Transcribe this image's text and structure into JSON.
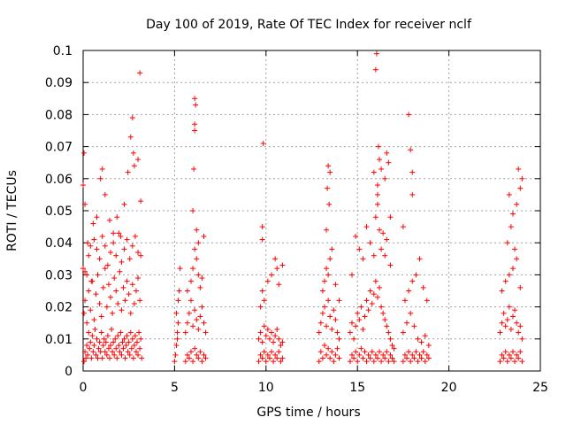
{
  "chart_data": {
    "type": "scatter",
    "title": "Day 100 of 2019, Rate Of TEC Index for receiver nclf",
    "xlabel": "GPS time / hours",
    "ylabel": "ROTI / TECUs",
    "xlim": [
      0,
      25
    ],
    "ylim": [
      0,
      0.1
    ],
    "xticks": [
      0,
      5,
      10,
      15,
      20,
      25
    ],
    "yticks": [
      0,
      0.01,
      0.02,
      0.03,
      0.04,
      0.05,
      0.06,
      0.07,
      0.08,
      0.09,
      0.1
    ],
    "xtick_labels": [
      "0",
      "5",
      "10",
      "15",
      "20",
      "25"
    ],
    "ytick_labels": [
      "0",
      "0.01",
      "0.02",
      "0.03",
      "0.04",
      "0.05",
      "0.06",
      "0.07",
      "0.08",
      "0.09",
      "0.1"
    ],
    "grid": true,
    "marker": "+",
    "marker_color": "#ff0000",
    "series": [
      {
        "name": "ROTI",
        "x": [
          0.05,
          0.1,
          0.15,
          0.2,
          0.25,
          0.3,
          0.35,
          0.4,
          0.45,
          0.5,
          0.55,
          0.6,
          0.65,
          0.7,
          0.75,
          0.8,
          0.85,
          0.9,
          0.95,
          1.0,
          1.05,
          1.1,
          1.15,
          1.2,
          1.25,
          1.3,
          1.35,
          1.4,
          1.45,
          1.5,
          1.55,
          1.6,
          1.65,
          1.7,
          1.75,
          1.8,
          1.85,
          1.9,
          1.95,
          2.0,
          2.05,
          2.1,
          2.15,
          2.2,
          2.25,
          2.3,
          2.35,
          2.4,
          2.45,
          2.5,
          2.55,
          2.6,
          2.65,
          2.7,
          2.75,
          2.8,
          2.85,
          2.9,
          2.95,
          3.0,
          3.05,
          3.1,
          3.15,
          3.2,
          0.05,
          0.1,
          0.2,
          0.3,
          0.4,
          0.5,
          0.6,
          0.7,
          0.8,
          0.9,
          1.0,
          1.1,
          1.2,
          1.3,
          1.4,
          1.5,
          1.6,
          1.7,
          1.8,
          1.9,
          2.0,
          2.1,
          2.2,
          2.3,
          2.4,
          2.5,
          2.6,
          2.7,
          2.8,
          2.9,
          3.0,
          3.1,
          0.0,
          0.1,
          0.2,
          0.3,
          0.45,
          0.6,
          0.75,
          0.9,
          1.05,
          1.2,
          1.35,
          1.5,
          1.65,
          1.8,
          1.95,
          2.1,
          2.25,
          2.4,
          2.55,
          2.7,
          2.85,
          3.0,
          3.15,
          0.0,
          0.05,
          0.1,
          0.25,
          0.4,
          0.55,
          0.75,
          0.95,
          1.05,
          1.2,
          1.45,
          1.65,
          1.85,
          2.05,
          2.25,
          2.45,
          2.6,
          2.7,
          2.75,
          2.8,
          3.0,
          3.1,
          3.15,
          5.0,
          5.05,
          5.1,
          5.15,
          5.2,
          5.25,
          5.3,
          5.1,
          5.2,
          5.15,
          5.6,
          5.7,
          5.8,
          5.9,
          6.0,
          6.1,
          6.2,
          6.3,
          6.4,
          6.5,
          6.6,
          6.7,
          5.6,
          5.7,
          5.8,
          5.9,
          6.0,
          6.1,
          6.2,
          6.3,
          6.4,
          6.5,
          6.6,
          6.7,
          5.7,
          5.9,
          6.0,
          6.1,
          6.2,
          6.3,
          6.4,
          6.5,
          6.6,
          6.0,
          6.05,
          6.1,
          6.1,
          6.15,
          6.1,
          6.2,
          6.3,
          9.6,
          9.7,
          9.8,
          9.9,
          10.0,
          10.1,
          10.2,
          10.3,
          10.4,
          10.5,
          10.6,
          10.7,
          10.8,
          10.9,
          9.6,
          9.7,
          9.8,
          9.9,
          10.0,
          10.1,
          10.2,
          10.3,
          10.4,
          10.5,
          10.6,
          10.7,
          10.8,
          10.9,
          9.7,
          9.8,
          9.9,
          10.1,
          10.3,
          10.5,
          10.6,
          10.7,
          10.9,
          9.8,
          9.8,
          9.85,
          12.9,
          13.0,
          13.1,
          13.2,
          13.3,
          13.4,
          13.5,
          13.6,
          13.7,
          13.8,
          13.9,
          14.0,
          12.9,
          13.0,
          13.1,
          13.2,
          13.3,
          13.4,
          13.5,
          13.6,
          13.7,
          13.8,
          13.9,
          14.0,
          13.1,
          13.2,
          13.3,
          13.4,
          13.5,
          13.6,
          13.8,
          14.0,
          13.3,
          13.35,
          13.4,
          13.45,
          13.5,
          14.6,
          14.7,
          14.8,
          14.9,
          15.0,
          15.1,
          15.2,
          15.3,
          15.4,
          15.5,
          15.6,
          15.7,
          15.8,
          15.9,
          16.0,
          16.1,
          16.2,
          16.3,
          16.4,
          16.5,
          16.6,
          16.7,
          16.8,
          16.9,
          17.0,
          14.6,
          14.7,
          14.8,
          14.9,
          15.0,
          15.1,
          15.2,
          15.3,
          15.4,
          15.5,
          15.6,
          15.7,
          15.8,
          15.9,
          16.0,
          16.1,
          16.2,
          16.3,
          16.4,
          16.5,
          16.6,
          16.7,
          16.8,
          16.9,
          17.0,
          14.7,
          14.9,
          15.1,
          15.3,
          15.5,
          15.7,
          15.9,
          16.0,
          16.1,
          16.2,
          16.3,
          16.4,
          16.5,
          16.6,
          16.8,
          15.9,
          16.0,
          16.05,
          16.1,
          16.1,
          16.15,
          16.2,
          16.3,
          16.5,
          16.6,
          16.7,
          16.8,
          17.5,
          17.6,
          17.7,
          17.8,
          17.9,
          18.0,
          18.1,
          18.2,
          18.3,
          18.4,
          18.5,
          18.6,
          18.7,
          18.8,
          18.9,
          17.5,
          17.7,
          17.9,
          18.1,
          18.3,
          18.5,
          18.7,
          18.9,
          17.6,
          17.8,
          18.0,
          18.2,
          18.4,
          18.6,
          18.8,
          17.8,
          17.9,
          18.0,
          18.0,
          17.5,
          22.8,
          22.9,
          23.0,
          23.1,
          23.2,
          23.3,
          23.4,
          23.5,
          23.6,
          23.7,
          23.8,
          23.9,
          24.0,
          22.8,
          22.9,
          23.0,
          23.1,
          23.2,
          23.3,
          23.4,
          23.5,
          23.6,
          23.7,
          23.8,
          23.9,
          24.0,
          22.9,
          23.1,
          23.3,
          23.5,
          23.7,
          23.9,
          23.2,
          23.4,
          23.6,
          23.7,
          23.8,
          23.9,
          24.0,
          23.3,
          23.5
        ],
        "y": [
          0.003,
          0.006,
          0.004,
          0.008,
          0.005,
          0.012,
          0.007,
          0.009,
          0.004,
          0.011,
          0.006,
          0.008,
          0.013,
          0.005,
          0.01,
          0.004,
          0.007,
          0.009,
          0.006,
          0.012,
          0.004,
          0.008,
          0.01,
          0.006,
          0.009,
          0.005,
          0.011,
          0.007,
          0.004,
          0.008,
          0.013,
          0.006,
          0.009,
          0.005,
          0.01,
          0.007,
          0.004,
          0.011,
          0.008,
          0.006,
          0.012,
          0.005,
          0.009,
          0.007,
          0.01,
          0.004,
          0.008,
          0.011,
          0.006,
          0.009,
          0.005,
          0.012,
          0.007,
          0.01,
          0.004,
          0.008,
          0.011,
          0.006,
          0.009,
          0.005,
          0.012,
          0.007,
          0.01,
          0.004,
          0.018,
          0.022,
          0.015,
          0.025,
          0.019,
          0.028,
          0.016,
          0.024,
          0.03,
          0.021,
          0.017,
          0.026,
          0.032,
          0.02,
          0.027,
          0.023,
          0.018,
          0.029,
          0.025,
          0.021,
          0.031,
          0.019,
          0.026,
          0.022,
          0.028,
          0.024,
          0.018,
          0.027,
          0.021,
          0.025,
          0.029,
          0.022,
          0.032,
          0.031,
          0.03,
          0.036,
          0.028,
          0.041,
          0.038,
          0.035,
          0.042,
          0.039,
          0.033,
          0.037,
          0.04,
          0.036,
          0.043,
          0.034,
          0.038,
          0.041,
          0.035,
          0.039,
          0.042,
          0.037,
          0.036,
          0.058,
          0.068,
          0.052,
          0.04,
          0.039,
          0.046,
          0.048,
          0.06,
          0.063,
          0.055,
          0.047,
          0.043,
          0.048,
          0.042,
          0.052,
          0.062,
          0.073,
          0.079,
          0.068,
          0.064,
          0.066,
          0.093,
          0.053,
          0.003,
          0.005,
          0.008,
          0.012,
          0.015,
          0.025,
          0.032,
          0.018,
          0.022,
          0.01,
          0.003,
          0.005,
          0.004,
          0.006,
          0.003,
          0.007,
          0.005,
          0.004,
          0.006,
          0.003,
          0.005,
          0.004,
          0.012,
          0.015,
          0.018,
          0.022,
          0.014,
          0.019,
          0.016,
          0.013,
          0.017,
          0.02,
          0.015,
          0.012,
          0.025,
          0.028,
          0.032,
          0.038,
          0.035,
          0.03,
          0.026,
          0.029,
          0.042,
          0.05,
          0.063,
          0.077,
          0.085,
          0.083,
          0.075,
          0.044,
          0.04,
          0.003,
          0.005,
          0.004,
          0.006,
          0.003,
          0.005,
          0.004,
          0.006,
          0.003,
          0.005,
          0.004,
          0.006,
          0.003,
          0.004,
          0.01,
          0.012,
          0.009,
          0.014,
          0.011,
          0.013,
          0.01,
          0.012,
          0.009,
          0.011,
          0.013,
          0.01,
          0.008,
          0.009,
          0.02,
          0.025,
          0.022,
          0.028,
          0.03,
          0.035,
          0.032,
          0.027,
          0.033,
          0.045,
          0.041,
          0.071,
          0.003,
          0.006,
          0.004,
          0.008,
          0.005,
          0.007,
          0.004,
          0.006,
          0.003,
          0.005,
          0.007,
          0.004,
          0.012,
          0.015,
          0.018,
          0.02,
          0.014,
          0.022,
          0.017,
          0.013,
          0.019,
          0.016,
          0.012,
          0.01,
          0.025,
          0.028,
          0.032,
          0.03,
          0.035,
          0.038,
          0.027,
          0.022,
          0.044,
          0.057,
          0.064,
          0.052,
          0.062,
          0.003,
          0.005,
          0.004,
          0.006,
          0.003,
          0.005,
          0.007,
          0.004,
          0.006,
          0.003,
          0.005,
          0.004,
          0.006,
          0.003,
          0.005,
          0.004,
          0.006,
          0.003,
          0.005,
          0.004,
          0.006,
          0.003,
          0.005,
          0.004,
          0.003,
          0.012,
          0.015,
          0.01,
          0.014,
          0.018,
          0.016,
          0.02,
          0.013,
          0.017,
          0.022,
          0.019,
          0.025,
          0.021,
          0.024,
          0.028,
          0.023,
          0.026,
          0.02,
          0.018,
          0.016,
          0.014,
          0.012,
          0.01,
          0.008,
          0.007,
          0.03,
          0.042,
          0.038,
          0.035,
          0.045,
          0.04,
          0.036,
          0.048,
          0.052,
          0.044,
          0.038,
          0.043,
          0.036,
          0.041,
          0.033,
          0.062,
          0.094,
          0.099,
          0.058,
          0.055,
          0.07,
          0.066,
          0.063,
          0.06,
          0.068,
          0.065,
          0.048,
          0.003,
          0.005,
          0.004,
          0.006,
          0.003,
          0.005,
          0.004,
          0.006,
          0.003,
          0.005,
          0.004,
          0.006,
          0.003,
          0.005,
          0.004,
          0.012,
          0.015,
          0.018,
          0.014,
          0.01,
          0.009,
          0.011,
          0.008,
          0.022,
          0.025,
          0.028,
          0.03,
          0.035,
          0.026,
          0.022,
          0.08,
          0.069,
          0.062,
          0.055,
          0.045,
          0.003,
          0.005,
          0.004,
          0.006,
          0.003,
          0.005,
          0.004,
          0.006,
          0.003,
          0.005,
          0.004,
          0.006,
          0.003,
          0.012,
          0.015,
          0.018,
          0.014,
          0.016,
          0.02,
          0.013,
          0.017,
          0.019,
          0.015,
          0.012,
          0.014,
          0.01,
          0.025,
          0.028,
          0.03,
          0.032,
          0.035,
          0.026,
          0.04,
          0.045,
          0.038,
          0.052,
          0.063,
          0.057,
          0.06,
          0.055,
          0.049
        ]
      }
    ]
  }
}
